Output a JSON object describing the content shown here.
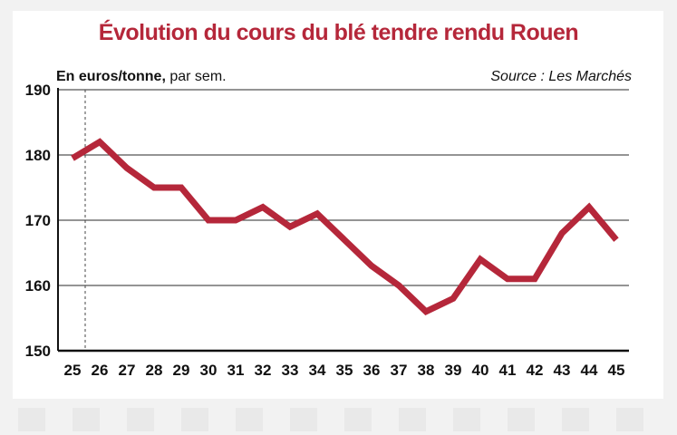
{
  "chart_data": {
    "type": "line",
    "title": "Évolution du cours du blé tendre rendu Rouen",
    "unit_bold": "En euros/tonne,",
    "unit_rest": " par sem.",
    "source": "Source : Les Marchés",
    "x": [
      25,
      26,
      27,
      28,
      29,
      30,
      31,
      32,
      33,
      34,
      35,
      36,
      37,
      38,
      39,
      40,
      41,
      42,
      43,
      44,
      45
    ],
    "series": [
      {
        "values": [
          179.5,
          182,
          178,
          175,
          175,
          170,
          170,
          172,
          169,
          171,
          167,
          163,
          160,
          156,
          158,
          164,
          161,
          161,
          168,
          172,
          167
        ]
      }
    ],
    "y_ticks": [
      150,
      160,
      170,
      180,
      190
    ],
    "ylim": [
      150,
      190
    ],
    "grid": true,
    "color": "#b5273a"
  }
}
